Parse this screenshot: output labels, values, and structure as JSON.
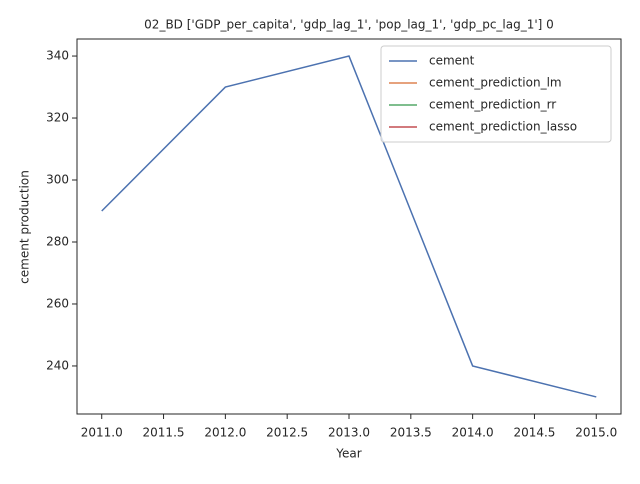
{
  "chart_data": {
    "type": "line",
    "title": "02_BD ['GDP_per_capita', 'gdp_lag_1', 'pop_lag_1', 'gdp_pc_lag_1'] 0",
    "xlabel": "Year",
    "ylabel": "cement production",
    "x": [
      2011,
      2012,
      2013,
      2014,
      2015
    ],
    "series": [
      {
        "name": "cement",
        "color": "#4c72b0",
        "values": [
          290,
          330,
          340,
          240,
          230
        ]
      },
      {
        "name": "cement_prediction_lm",
        "color": "#dd8452",
        "values": [
          null,
          null,
          null,
          null,
          null
        ]
      },
      {
        "name": "cement_prediction_rr",
        "color": "#55a868",
        "values": [
          null,
          null,
          null,
          null,
          null
        ]
      },
      {
        "name": "cement_prediction_lasso",
        "color": "#c44e52",
        "values": [
          null,
          null,
          null,
          null,
          null
        ]
      }
    ],
    "xlim": [
      2010.8,
      2015.2
    ],
    "xticks": [
      {
        "value": 2011,
        "label": "2011.0"
      },
      {
        "value": 2011.5,
        "label": "2011.5"
      },
      {
        "value": 2012,
        "label": "2012.0"
      },
      {
        "value": 2012.5,
        "label": "2012.5"
      },
      {
        "value": 2013,
        "label": "2013.0"
      },
      {
        "value": 2013.5,
        "label": "2013.5"
      },
      {
        "value": 2014,
        "label": "2014.0"
      },
      {
        "value": 2014.5,
        "label": "2014.5"
      },
      {
        "value": 2015,
        "label": "2015.0"
      }
    ],
    "ylim": [
      224.5,
      345.5
    ],
    "yticks": [
      240,
      260,
      280,
      300,
      320,
      340
    ],
    "grid": false,
    "legend": "upper right"
  }
}
